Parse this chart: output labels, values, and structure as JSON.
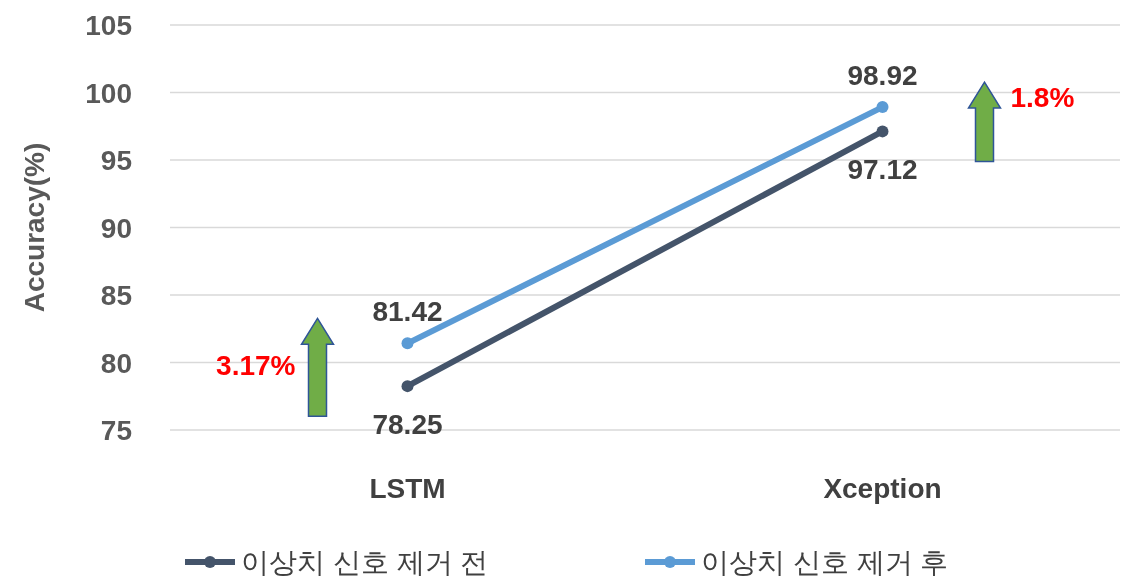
{
  "chart_data": {
    "type": "line",
    "ylabel": "Accuracy(%)",
    "categories": [
      "LSTM",
      "Xception"
    ],
    "series": [
      {
        "name": "이상치 신호 제거 전",
        "color": "#44546a",
        "values": [
          78.25,
          97.12
        ]
      },
      {
        "name": "이상치 신호 제거 후",
        "color": "#5b9bd5",
        "values": [
          81.42,
          98.92
        ]
      }
    ],
    "ylim": [
      75,
      105
    ],
    "yticks": [
      75,
      80,
      85,
      90,
      95,
      100,
      105
    ],
    "grid": "y",
    "legend": "bottom",
    "marker": "circle",
    "data_labels": true,
    "annotations": [
      "3.17%",
      "1.8%"
    ]
  }
}
